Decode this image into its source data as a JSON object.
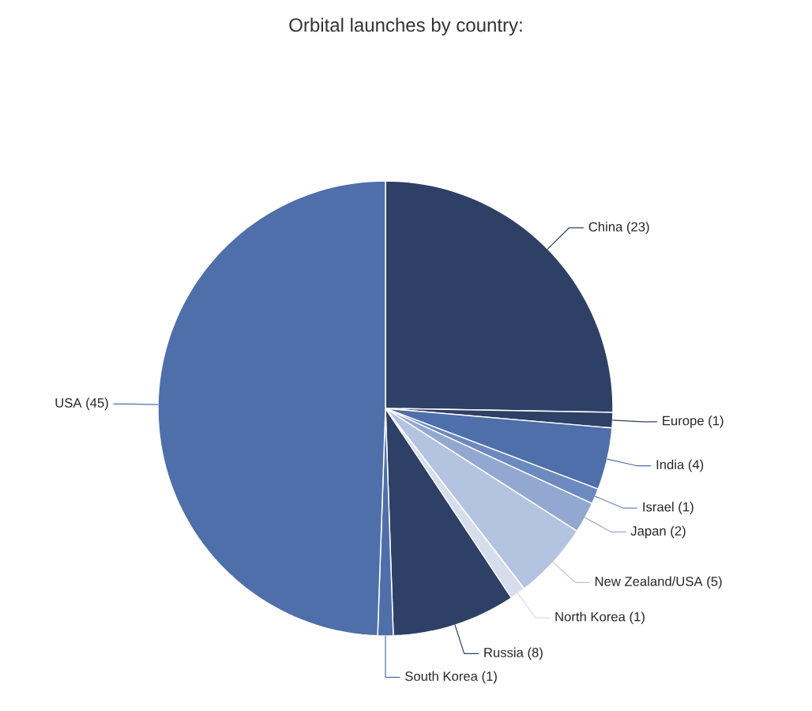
{
  "chart_data": {
    "type": "pie",
    "title": "Orbital launches by country:",
    "categories": [
      "China (23)",
      "Europe (1)",
      "India (4)",
      "Israel (1)",
      "Japan (2)",
      "New Zealand/USA (5)",
      "North Korea (1)",
      "Russia (8)",
      "South Korea (1)",
      "USA (45)"
    ],
    "values": [
      23,
      1,
      4,
      1,
      2,
      5,
      1,
      8,
      1,
      45
    ],
    "colors": [
      "#2f4066",
      "#2f4066",
      "#4e6faa",
      "#6c89c0",
      "#93a8d0",
      "#b4c3e0",
      "#d6deee",
      "#2f4066",
      "#4e6faa",
      "#4e6faa"
    ]
  }
}
